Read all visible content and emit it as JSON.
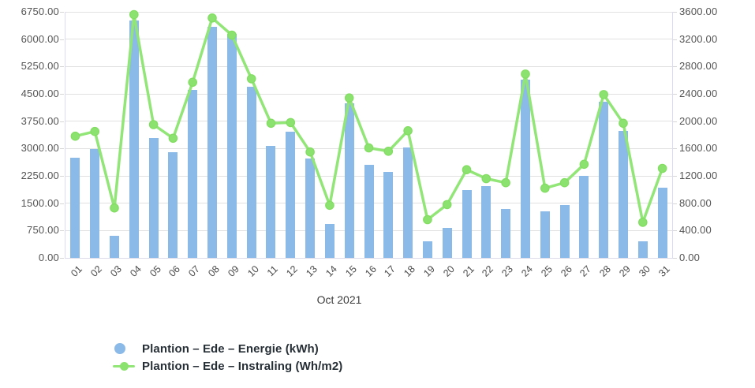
{
  "chart_data": {
    "type": "bar+line combo",
    "title": "",
    "xlabel": "Oct 2021",
    "grid": true,
    "legend_position": "bottom-left",
    "categories": [
      "01",
      "02",
      "03",
      "04",
      "05",
      "06",
      "07",
      "08",
      "09",
      "10",
      "11",
      "12",
      "13",
      "14",
      "15",
      "16",
      "17",
      "18",
      "19",
      "20",
      "21",
      "22",
      "23",
      "24",
      "25",
      "26",
      "27",
      "28",
      "29",
      "30",
      "31"
    ],
    "series": [
      {
        "name": "Plantion – Ede – Energie (kWh)",
        "type": "bar",
        "axis": "left",
        "color": "#8cbae8",
        "values": [
          2750,
          2980,
          600,
          6520,
          3290,
          2900,
          4600,
          6350,
          6140,
          4690,
          3080,
          3460,
          2720,
          930,
          4250,
          2550,
          2350,
          3030,
          450,
          830,
          1870,
          1960,
          1340,
          4900,
          1270,
          1440,
          2240,
          4290,
          3480,
          450,
          1930
        ]
      },
      {
        "name": "Plantion – Ede – Instraling (Wh/m2)",
        "type": "line",
        "axis": "right",
        "color": "#92e577",
        "dot_color": "#8ce26e",
        "dot_stroke": "#82dd62",
        "values": [
          1780,
          1850,
          730,
          3560,
          1950,
          1750,
          2570,
          3510,
          3260,
          2620,
          1970,
          1980,
          1550,
          770,
          2340,
          1610,
          1560,
          1860,
          560,
          780,
          1290,
          1160,
          1100,
          2690,
          1020,
          1100,
          1370,
          2390,
          1970,
          520,
          1310
        ]
      }
    ],
    "left_axis": {
      "min": 0,
      "max": 6750,
      "step": 750,
      "ticks": [
        "0.00",
        "750.00",
        "1500.00",
        "2250.00",
        "3000.00",
        "3750.00",
        "4500.00",
        "5250.00",
        "6000.00",
        "6750.00"
      ]
    },
    "right_axis": {
      "min": 0,
      "max": 3600,
      "step": 400,
      "ticks": [
        "0.00",
        "400.00",
        "800.00",
        "1200.00",
        "1600.00",
        "2000.00",
        "2400.00",
        "2800.00",
        "3200.00",
        "3600.00"
      ]
    }
  }
}
